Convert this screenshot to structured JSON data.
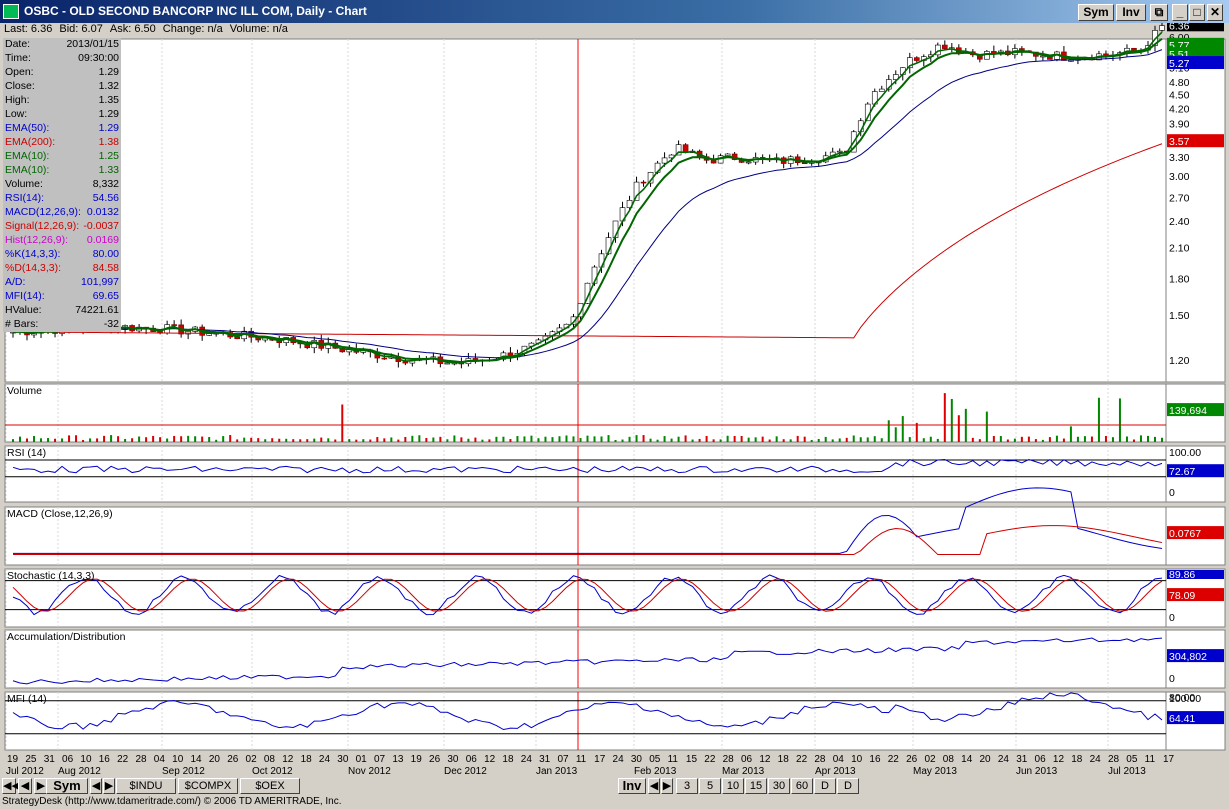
{
  "window": {
    "title": "OSBC - OLD SECOND BANCORP INC ILL COM, Daily - Chart",
    "buttons": [
      "Sym",
      "Inv"
    ]
  },
  "quote": {
    "last": "Last: 6.36",
    "bid": "Bid: 6.07",
    "ask": "Ask: 6.50",
    "change": "Change: n/a",
    "volume": "Volume: n/a"
  },
  "info": [
    {
      "k": "Date:",
      "v": "2013/01/15",
      "color": "#000000"
    },
    {
      "k": "Time:",
      "v": "09:30:00",
      "color": "#000000"
    },
    {
      "k": "Open:",
      "v": "1.29",
      "color": "#000000"
    },
    {
      "k": "Close:",
      "v": "1.32",
      "color": "#000000"
    },
    {
      "k": "High:",
      "v": "1.35",
      "color": "#000000"
    },
    {
      "k": "Low:",
      "v": "1.29",
      "color": "#000000"
    },
    {
      "k": "EMA(50):",
      "v": "1.29",
      "color": "#0000cc"
    },
    {
      "k": "EMA(200):",
      "v": "1.38",
      "color": "#cc0000"
    },
    {
      "k": "EMA(10):",
      "v": "1.25",
      "color": "#006600"
    },
    {
      "k": "EMA(10):",
      "v": "1.33",
      "color": "#006600"
    },
    {
      "k": "Volume:",
      "v": "8,332",
      "color": "#000000"
    },
    {
      "k": "RSI(14):",
      "v": "54.56",
      "color": "#0000cc"
    },
    {
      "k": "MACD(12,26,9):",
      "v": "0.0132",
      "color": "#0000cc"
    },
    {
      "k": "Signal(12,26,9):",
      "v": "-0.0037",
      "color": "#cc0000"
    },
    {
      "k": "Hist(12,26,9):",
      "v": "0.0169",
      "color": "#cc00cc"
    },
    {
      "k": "%K(14,3,3):",
      "v": "80.00",
      "color": "#0000cc"
    },
    {
      "k": "%D(14,3,3):",
      "v": "84.58",
      "color": "#cc0000"
    },
    {
      "k": "A/D:",
      "v": "101,997",
      "color": "#0000cc"
    },
    {
      "k": "MFI(14):",
      "v": "69.65",
      "color": "#0000cc"
    },
    {
      "k": "HValue:",
      "v": "74221.61",
      "color": "#000000"
    },
    {
      "k": "# Bars:",
      "v": "-32",
      "color": "#000000"
    }
  ],
  "price_axis": [
    "6.00",
    "5.50",
    "5.16",
    "4.80",
    "4.50",
    "4.20",
    "3.90",
    "3.60",
    "3.30",
    "3.00",
    "2.70",
    "2.40",
    "2.10",
    "1.80",
    "1.50",
    "1.20"
  ],
  "price_badges": [
    {
      "text": "6.36",
      "bg": "#000000",
      "fg": "#ffffff",
      "value": 6.36
    },
    {
      "text": "5.77",
      "bg": "#008800",
      "fg": "#ffffff",
      "value": 5.77
    },
    {
      "text": "5.51",
      "bg": "#008800",
      "fg": "#ffffff",
      "value": 5.51
    },
    {
      "text": "5.27",
      "bg": "#0000cc",
      "fg": "#ffffff",
      "value": 5.27
    },
    {
      "text": "3.57",
      "bg": "#dd0000",
      "fg": "#ffffff",
      "value": 3.57
    }
  ],
  "panels": [
    {
      "key": "volume",
      "label": "Volume",
      "badge": "139,694",
      "badge_bg": "#008800",
      "axis": []
    },
    {
      "key": "rsi",
      "label": "RSI (14)",
      "badge": "72.67",
      "badge_bg": "#0000cc",
      "axis": [
        "100.00",
        "0"
      ]
    },
    {
      "key": "macd",
      "label": "MACD (Close,12,26,9)",
      "badge": "0.0767",
      "badge_bg": "#dd0000",
      "axis": []
    },
    {
      "key": "stoch",
      "label": "Stochastic (14,3,3)",
      "badge": "78.09",
      "badge_bg": "#dd0000",
      "badge2": "89.86",
      "badge2_bg": "#0000cc",
      "axis": [
        "0"
      ]
    },
    {
      "key": "ad",
      "label": "Accumulation/Distribution",
      "badge": "304,802",
      "badge_bg": "#0000cc",
      "axis": [
        "0"
      ]
    },
    {
      "key": "mfi",
      "label": "MFI (14)",
      "badge": "64.41",
      "badge_bg": "#0000cc",
      "badge2": "80.00",
      "axis": [
        "100.00"
      ]
    }
  ],
  "date_ticks": [
    "19",
    "25",
    "31",
    "06",
    "10",
    "16",
    "22",
    "28",
    "04",
    "10",
    "14",
    "20",
    "26",
    "02",
    "08",
    "12",
    "18",
    "24",
    "30",
    "01",
    "07",
    "13",
    "19",
    "26",
    "30",
    "06",
    "12",
    "18",
    "24",
    "31",
    "07",
    "11",
    "17",
    "24",
    "30",
    "05",
    "11",
    "15",
    "22",
    "28",
    "06",
    "12",
    "18",
    "22",
    "28",
    "04",
    "10",
    "16",
    "22",
    "26",
    "02",
    "08",
    "14",
    "20",
    "24",
    "31",
    "06",
    "12",
    "18",
    "24",
    "28",
    "05",
    "11",
    "17"
  ],
  "months": [
    {
      "label": "Jul 2012",
      "x": 6
    },
    {
      "label": "Aug 2012",
      "x": 58
    },
    {
      "label": "Sep 2012",
      "x": 162
    },
    {
      "label": "Oct 2012",
      "x": 252
    },
    {
      "label": "Nov 2012",
      "x": 348
    },
    {
      "label": "Dec 2012",
      "x": 444
    },
    {
      "label": "Jan 2013",
      "x": 536
    },
    {
      "label": "Feb 2013",
      "x": 634
    },
    {
      "label": "Mar 2013",
      "x": 722
    },
    {
      "label": "Apr 2013",
      "x": 815
    },
    {
      "label": "May 2013",
      "x": 913
    },
    {
      "label": "Jun 2013",
      "x": 1016
    },
    {
      "label": "Jul 2013",
      "x": 1108
    }
  ],
  "footer": {
    "sym": "Sym",
    "tabs": [
      "$INDU",
      "$COMPX",
      "$OEX"
    ],
    "inv": "Inv",
    "periods": [
      "3",
      "5",
      "10",
      "15",
      "30",
      "60",
      "D",
      "D"
    ],
    "status": "StrategyDesk (http://www.tdameritrade.com/) © 2006 TD AMERITRADE, Inc."
  }
}
